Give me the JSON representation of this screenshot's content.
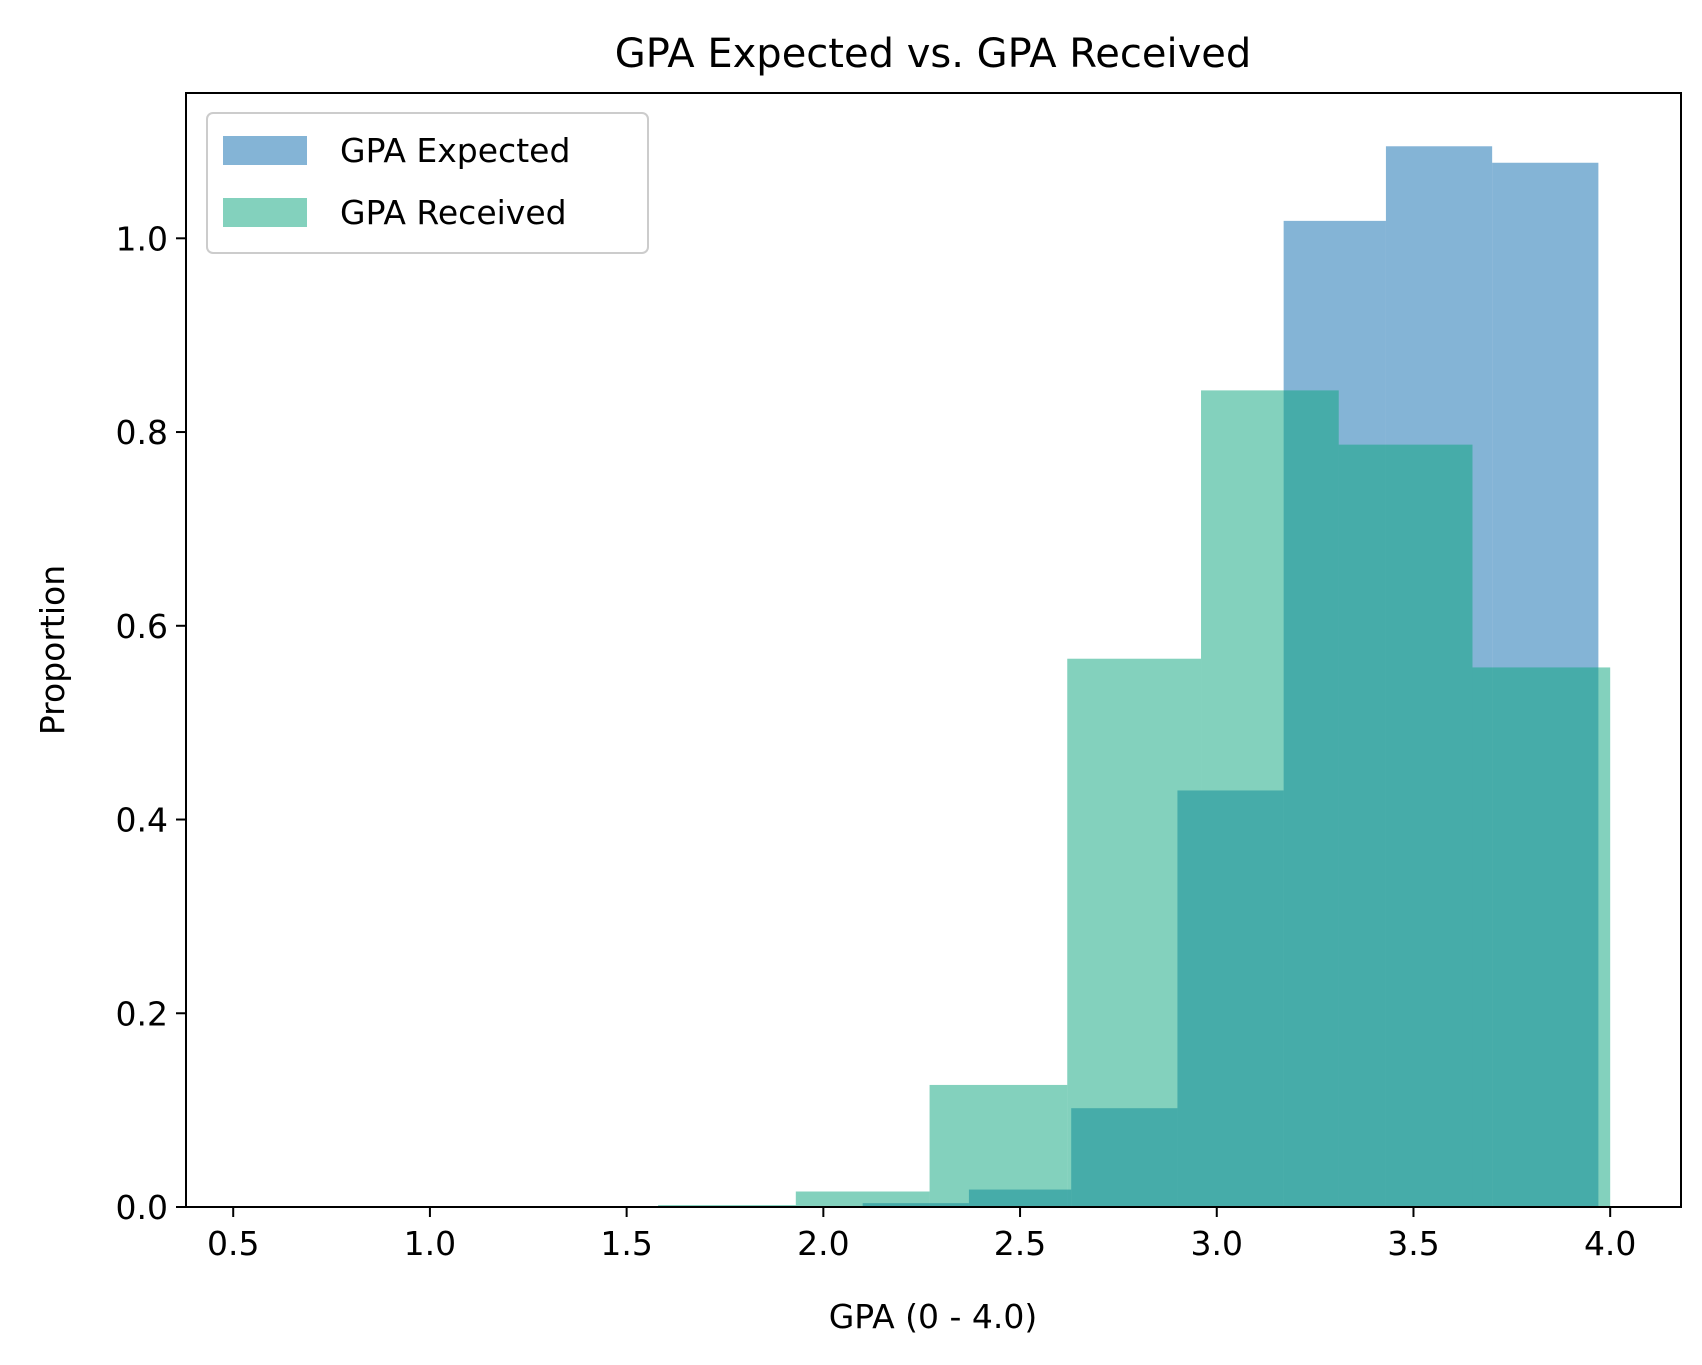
{
  "chart_data": {
    "type": "bar",
    "title": "GPA Expected vs. GPA Received",
    "xlabel": "GPA (0 - 4.0)",
    "ylabel": "Proportion",
    "xlim": [
      0.38,
      4.18
    ],
    "ylim": [
      0,
      1.15
    ],
    "xticks": [
      "0.5",
      "1.0",
      "1.5",
      "2.0",
      "2.5",
      "3.0",
      "3.5",
      "4.0"
    ],
    "yticks": [
      "0.0",
      "0.2",
      "0.4",
      "0.6",
      "0.8",
      "1.0"
    ],
    "grid": false,
    "legend_position": "top-left",
    "series": [
      {
        "name": "GPA Expected",
        "color": "#1f77b4",
        "opacity": 0.55,
        "bins": [
          {
            "x0": 0.5,
            "x1": 0.77,
            "value": 0
          },
          {
            "x0": 0.77,
            "x1": 1.03,
            "value": 0
          },
          {
            "x0": 1.03,
            "x1": 1.3,
            "value": 0
          },
          {
            "x0": 1.3,
            "x1": 1.57,
            "value": 0
          },
          {
            "x0": 1.57,
            "x1": 1.83,
            "value": 0.001
          },
          {
            "x0": 1.83,
            "x1": 2.1,
            "value": 0.001
          },
          {
            "x0": 2.1,
            "x1": 2.37,
            "value": 0.004
          },
          {
            "x0": 2.37,
            "x1": 2.63,
            "value": 0.018
          },
          {
            "x0": 2.63,
            "x1": 2.9,
            "value": 0.102
          },
          {
            "x0": 2.9,
            "x1": 3.17,
            "value": 0.43
          },
          {
            "x0": 3.17,
            "x1": 3.43,
            "value": 1.018
          },
          {
            "x0": 3.43,
            "x1": 3.7,
            "value": 1.095
          },
          {
            "x0": 3.7,
            "x1": 3.97,
            "value": 1.078
          }
        ]
      },
      {
        "name": "GPA Received",
        "color": "#07a37b",
        "opacity": 0.5,
        "bins": [
          {
            "x0": 1.58,
            "x1": 1.93,
            "value": 0.002
          },
          {
            "x0": 1.93,
            "x1": 2.27,
            "value": 0.016
          },
          {
            "x0": 2.27,
            "x1": 2.62,
            "value": 0.126
          },
          {
            "x0": 2.62,
            "x1": 2.96,
            "value": 0.566
          },
          {
            "x0": 2.96,
            "x1": 3.31,
            "value": 0.843
          },
          {
            "x0": 3.31,
            "x1": 3.65,
            "value": 0.787
          },
          {
            "x0": 3.65,
            "x1": 4.0,
            "value": 0.557
          }
        ]
      }
    ]
  }
}
